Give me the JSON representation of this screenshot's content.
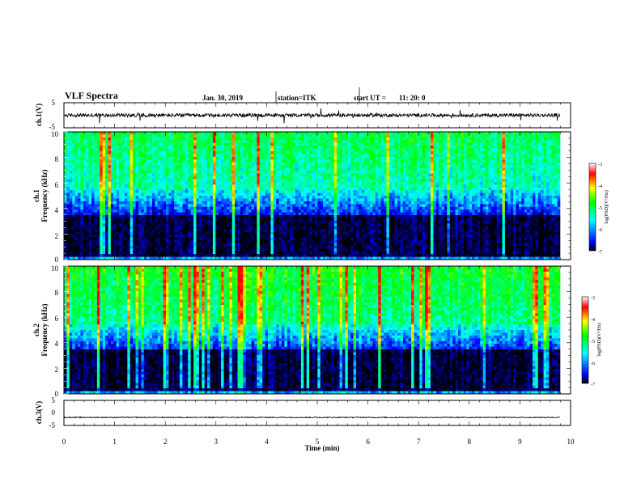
{
  "header": {
    "title": "VLF Spectra",
    "date": "Jan. 30, 2019",
    "station": "station=ITK",
    "start_label": "start UT =",
    "start_time": "11: 20: 0"
  },
  "colors": {
    "trace": "#000000",
    "colormap": [
      "#000000",
      "#0000ff",
      "#00ffff",
      "#00ff00",
      "#ffff00",
      "#ff0000",
      "#ffffff"
    ]
  },
  "chart_data": [
    {
      "type": "line",
      "panel": "ch1-waveform",
      "ylabel": "ch.1(V)",
      "ylim": [
        -5,
        5
      ],
      "yticks": [
        "5",
        "-5"
      ],
      "xlim": [
        0,
        10
      ],
      "baseline": 0,
      "description_values": "noisy waveform near 0 V with impulsive spikes"
    },
    {
      "type": "heatmap",
      "panel": "ch1-spectrogram",
      "ylabel_line1": "ch.1",
      "ylabel_line2": "Frequency (kHz)",
      "ylim": [
        0,
        10
      ],
      "yticks": [
        "0",
        "2",
        "4",
        "6",
        "8",
        "10"
      ],
      "xlim": [
        0,
        10
      ],
      "colorbar": {
        "label": "log(PSD)(V²/Hz)",
        "range": [
          -7,
          -3
        ],
        "ticks": [
          "-3",
          "-4",
          "-5",
          "-6",
          "-7"
        ]
      }
    },
    {
      "type": "heatmap",
      "panel": "ch2-spectrogram",
      "ylabel_line1": "ch.2",
      "ylabel_line2": "Frequency (kHz)",
      "ylim": [
        0,
        10
      ],
      "yticks": [
        "0",
        "2",
        "4",
        "6",
        "8",
        "10"
      ],
      "xlim": [
        0,
        10
      ],
      "colorbar": {
        "label": "log(PSD)(V²/Hz)",
        "range": [
          -7,
          -3
        ],
        "ticks": [
          "-3",
          "-4",
          "-5",
          "-6",
          "-7"
        ]
      }
    },
    {
      "type": "line",
      "panel": "ch3-waveform",
      "ylabel": "ch.3(V)",
      "ylim": [
        -5,
        5
      ],
      "yticks": [
        "5",
        "0",
        "-5"
      ],
      "xlim": [
        0,
        10
      ],
      "baseline": -1.8,
      "xlabel": "Time (min)",
      "xticks": [
        "0",
        "1",
        "2",
        "3",
        "4",
        "5",
        "6",
        "7",
        "8",
        "9",
        "10"
      ]
    }
  ]
}
